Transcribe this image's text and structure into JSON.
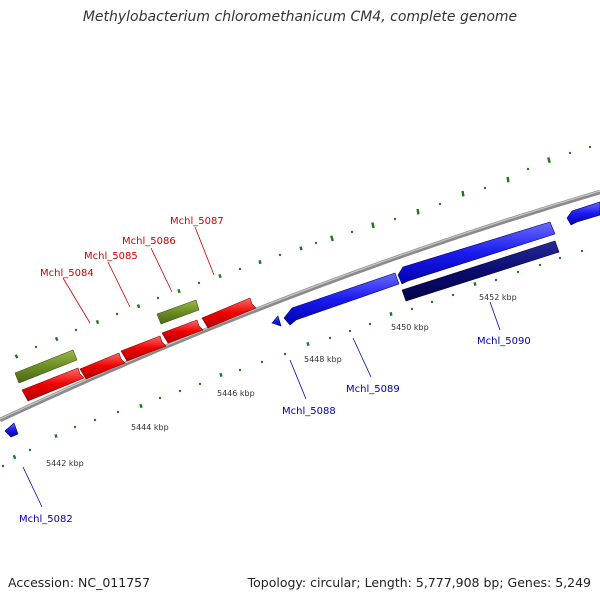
{
  "title": "Methylobacterium chloromethanicum CM4, complete genome",
  "footer": {
    "accession": "Accession: NC_011757",
    "stats": "Topology: circular; Length: 5,777,908 bp; Genes: 5,249"
  },
  "colors": {
    "backbone": "#8a8a8a",
    "forward_cds": "#ee0000",
    "forward_gene": "#6b8e23",
    "reverse_cds": "#1a1aee",
    "reverse_gene": "#0a0a70",
    "tick": "#1a7a1a",
    "forward_label": "#cc0000",
    "reverse_label": "#0000aa"
  },
  "tick_labels": [
    {
      "kbp": 5442,
      "text": "5442 kbp"
    },
    {
      "kbp": 5444,
      "text": "5444 kbp"
    },
    {
      "kbp": 5446,
      "text": "5446 kbp"
    },
    {
      "kbp": 5448,
      "text": "5448 kbp"
    },
    {
      "kbp": 5450,
      "text": "5450 kbp"
    },
    {
      "kbp": 5452,
      "text": "5452 kbp"
    }
  ],
  "genes": [
    {
      "name": "Mchl_5082",
      "strand": "reverse"
    },
    {
      "name": "Mchl_5084",
      "strand": "forward"
    },
    {
      "name": "Mchl_5085",
      "strand": "forward"
    },
    {
      "name": "Mchl_5086",
      "strand": "forward"
    },
    {
      "name": "Mchl_5087",
      "strand": "forward"
    },
    {
      "name": "Mchl_5088",
      "strand": "reverse"
    },
    {
      "name": "Mchl_5089",
      "strand": "reverse"
    },
    {
      "name": "Mchl_5090",
      "strand": "reverse"
    }
  ]
}
